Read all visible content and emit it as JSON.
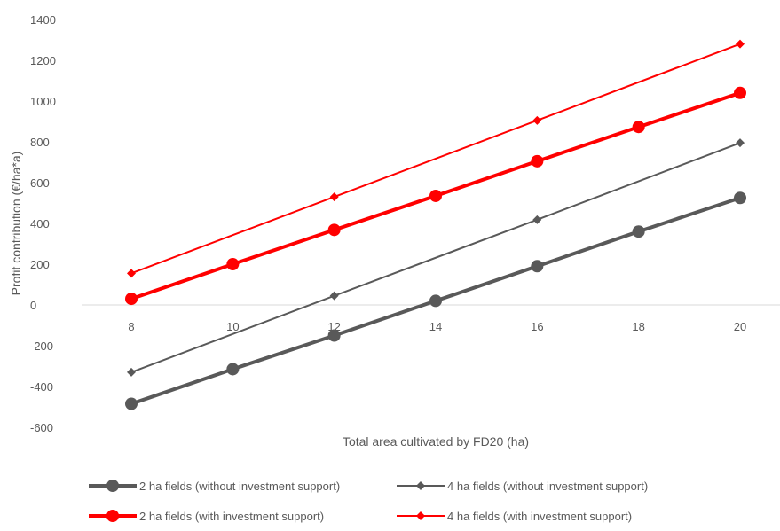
{
  "chart_data": {
    "type": "line",
    "title": "",
    "xlabel": "Total area cultivated by FD20 (ha)",
    "ylabel": "Profit contribution (€/ha*a)",
    "xlim": [
      8,
      20
    ],
    "ylim": [
      -600,
      1400
    ],
    "yticks": [
      -600,
      -400,
      -200,
      0,
      200,
      400,
      600,
      800,
      1000,
      1200,
      1400
    ],
    "xticks": [
      8,
      10,
      12,
      14,
      16,
      18,
      20
    ],
    "grid": false,
    "legend_position": "bottom",
    "series": [
      {
        "name": "2 ha fields (without investment support)",
        "color": "#595959",
        "marker": "circle",
        "line": "thick",
        "x": [
          8,
          10,
          12,
          14,
          16,
          18,
          20
        ],
        "y": [
          -485,
          -315,
          -150,
          20,
          190,
          360,
          525
        ]
      },
      {
        "name": "4 ha fields (without investment support)",
        "color": "#595959",
        "marker": "diamond",
        "line": "thin",
        "x": [
          8,
          12,
          16,
          20
        ],
        "y": [
          -330,
          45,
          418,
          795
        ]
      },
      {
        "name": "2 ha fields (with investment support)",
        "color": "#ff0000",
        "marker": "circle",
        "line": "thick",
        "x": [
          8,
          10,
          12,
          14,
          16,
          18,
          20
        ],
        "y": [
          30,
          200,
          368,
          535,
          705,
          873,
          1040
        ]
      },
      {
        "name": "4 ha fields (with investment support)",
        "color": "#ff0000",
        "marker": "diamond",
        "line": "thin",
        "x": [
          8,
          12,
          16,
          20
        ],
        "y": [
          155,
          530,
          905,
          1280
        ]
      }
    ]
  }
}
